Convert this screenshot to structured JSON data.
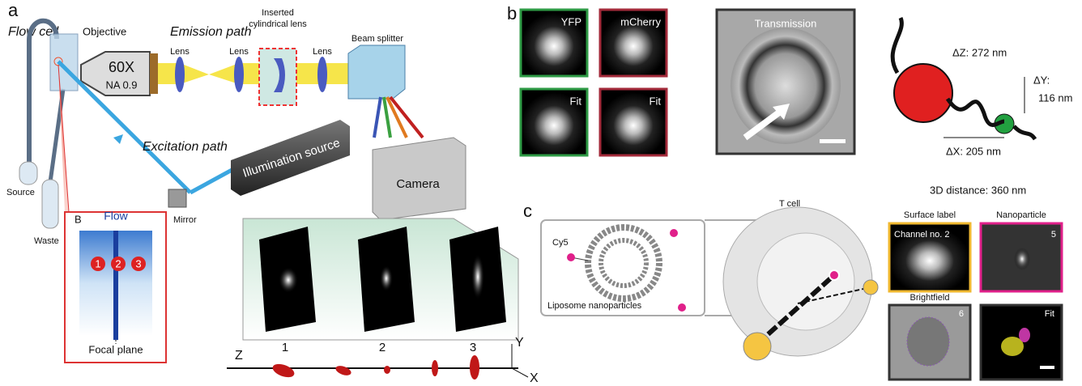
{
  "panel_a": {
    "label": "a",
    "flow_cell": "Flow cell",
    "objective": "Objective",
    "magnification": "60X",
    "aperture": "NA 0.9",
    "emission_path": "Emission path",
    "lenses": [
      "Lens",
      "Lens",
      "Lens"
    ],
    "cylindrical_lens": [
      "Inserted",
      "cylindrical lens"
    ],
    "beam_splitter": "Beam splitter",
    "excitation_path": "Excitation path",
    "illumination_source": "Illumination source",
    "camera": "Camera",
    "mirror": "Mirror",
    "source": "Source",
    "waste": "Waste",
    "inset": {
      "label": "B",
      "flow": "Flow",
      "positions": [
        "1",
        "2",
        "3"
      ],
      "focal_plane": "Focal plane"
    },
    "images": [
      "1",
      "2",
      "3"
    ],
    "axes": {
      "z": "Z",
      "y": "Y",
      "x": "X"
    }
  },
  "panel_b": {
    "label": "b",
    "yfp": "YFP",
    "mcherry": "mCherry",
    "fits": [
      "Fit",
      "Fit"
    ],
    "transmission": "Transmission",
    "delta_z": "ΔZ: 272 nm",
    "delta_y": [
      "ΔY:",
      "116 nm"
    ],
    "delta_x": "ΔX: 205 nm",
    "distance": "3D distance: 360 nm"
  },
  "panel_c": {
    "label": "c",
    "dye": "Cy5",
    "liposome": "Liposome nanoparticles",
    "t_cell": "T cell",
    "surface_label": "Surface label",
    "nanoparticle": "Nanoparticle",
    "channel": "Channel no. 2",
    "nanoparticle_index": "5",
    "brightfield": "Brightfield",
    "brightfield_index": "6",
    "fit": "Fit"
  }
}
